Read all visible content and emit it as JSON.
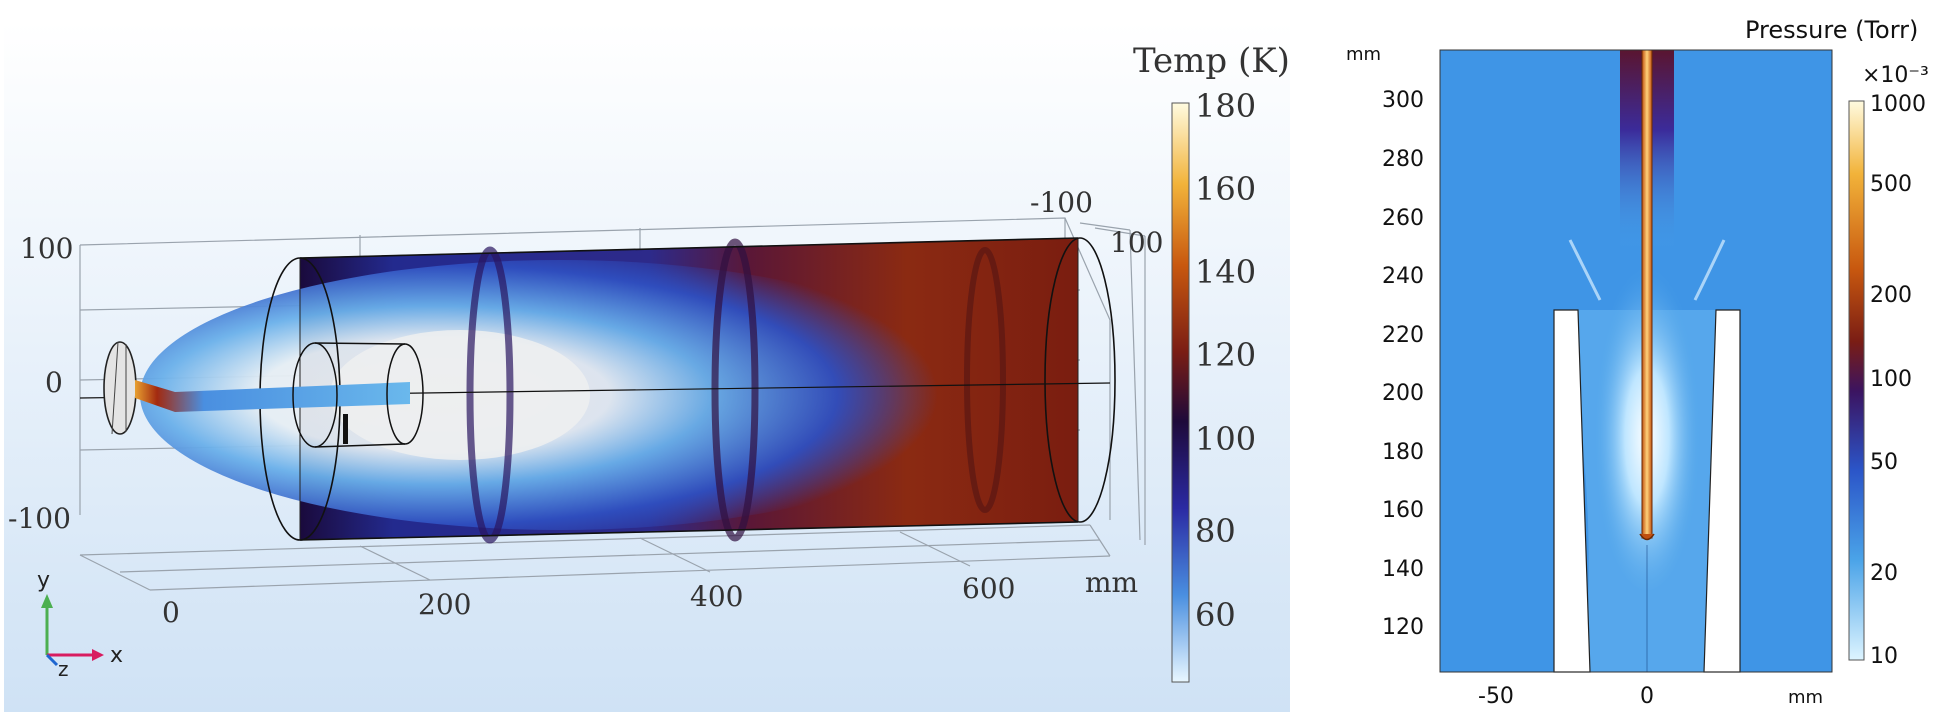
{
  "left_panel": {
    "colorbar": {
      "title": "Temp (K)",
      "ticks": [
        "180",
        "160",
        "140",
        "120",
        "100",
        "80",
        "60"
      ],
      "colors": [
        "#fffbe0",
        "#f2b33a",
        "#c8580f",
        "#7a1d14",
        "#1e0a3a",
        "#2b2aa3",
        "#4a8fe0",
        "#e9f7ff"
      ]
    },
    "axes": {
      "y_ticks": [
        "100",
        "0",
        "-100"
      ],
      "x_ticks": [
        "0",
        "200",
        "400",
        "600"
      ],
      "x_unit": "mm",
      "z_ticks": [
        "-100",
        "100"
      ]
    },
    "triad": {
      "y": "y",
      "x": "x",
      "z": "z"
    }
  },
  "right_panel": {
    "colorbar": {
      "title": "Pressure (Torr)",
      "multiplier": "×10⁻³",
      "ticks": [
        "1000",
        "500",
        "200",
        "100",
        "50",
        "20",
        "10"
      ],
      "colors": [
        "#fffbe0",
        "#f2b33a",
        "#c8580f",
        "#7a1d14",
        "#3b1461",
        "#2b55c8",
        "#4aa3e8",
        "#ddf4ff"
      ]
    },
    "axes": {
      "y_unit": "mm",
      "y_ticks": [
        "300",
        "280",
        "260",
        "240",
        "220",
        "200",
        "180",
        "160",
        "140",
        "120"
      ],
      "x_ticks": [
        "-50",
        "0"
      ],
      "x_unit": "mm"
    }
  }
}
